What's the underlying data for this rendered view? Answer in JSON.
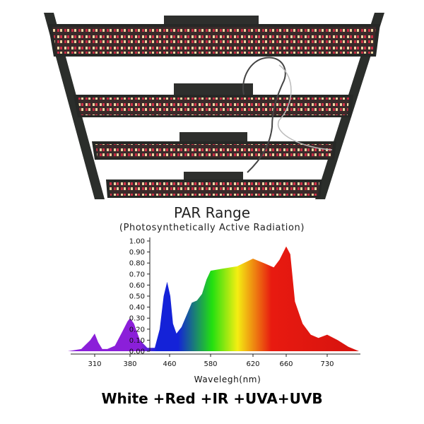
{
  "chart_data": {
    "type": "area",
    "title": "PAR Range",
    "subtitle": "(Photosynthetically Active Radiation)",
    "xlabel": "Wavelegh(nm)",
    "ylabel": "",
    "x_ticks": [
      "310",
      "380",
      "460",
      "580",
      "620",
      "660",
      "730"
    ],
    "y_ticks": [
      "1.00",
      "0.90",
      "0.80",
      "0.70",
      "0.60",
      "0.50",
      "0.40",
      "0.30",
      "0.20",
      "0.10",
      "0.00"
    ],
    "ylim": [
      0,
      1
    ],
    "grid": false,
    "legend": "none",
    "series": [
      {
        "points": [
          [
            280,
            0
          ],
          [
            295,
            0.02
          ],
          [
            305,
            0.1
          ],
          [
            310,
            0.16
          ],
          [
            317,
            0.08
          ],
          [
            325,
            0.02
          ],
          [
            335,
            0.02
          ],
          [
            350,
            0.05
          ],
          [
            365,
            0.18
          ],
          [
            375,
            0.27
          ],
          [
            380,
            0.3
          ],
          [
            388,
            0.25
          ],
          [
            400,
            0.1
          ],
          [
            415,
            0.03
          ],
          [
            430,
            0.03
          ],
          [
            440,
            0.2
          ],
          [
            448,
            0.5
          ],
          [
            455,
            0.63
          ],
          [
            462,
            0.5
          ],
          [
            470,
            0.25
          ],
          [
            480,
            0.16
          ],
          [
            495,
            0.22
          ],
          [
            510,
            0.33
          ],
          [
            525,
            0.44
          ],
          [
            540,
            0.46
          ],
          [
            555,
            0.52
          ],
          [
            568,
            0.65
          ],
          [
            580,
            0.73
          ],
          [
            592,
            0.75
          ],
          [
            605,
            0.77
          ],
          [
            620,
            0.84
          ],
          [
            633,
            0.8
          ],
          [
            645,
            0.76
          ],
          [
            652,
            0.83
          ],
          [
            660,
            0.95
          ],
          [
            667,
            0.88
          ],
          [
            675,
            0.45
          ],
          [
            688,
            0.25
          ],
          [
            702,
            0.15
          ],
          [
            715,
            0.12
          ],
          [
            730,
            0.15
          ],
          [
            745,
            0.1
          ],
          [
            760,
            0.04
          ],
          [
            775,
            0
          ]
        ]
      }
    ]
  },
  "caption": "White +Red +IR +UVA+UVB",
  "colors": {
    "uv": "#8b1fd9",
    "blue": "#1422d8",
    "green": "#22e010",
    "yellow": "#f4ee12",
    "red": "#e81a10",
    "ir": "#c80d0d"
  },
  "product_image": {
    "subject": "four-bar LED grow light fixture"
  }
}
